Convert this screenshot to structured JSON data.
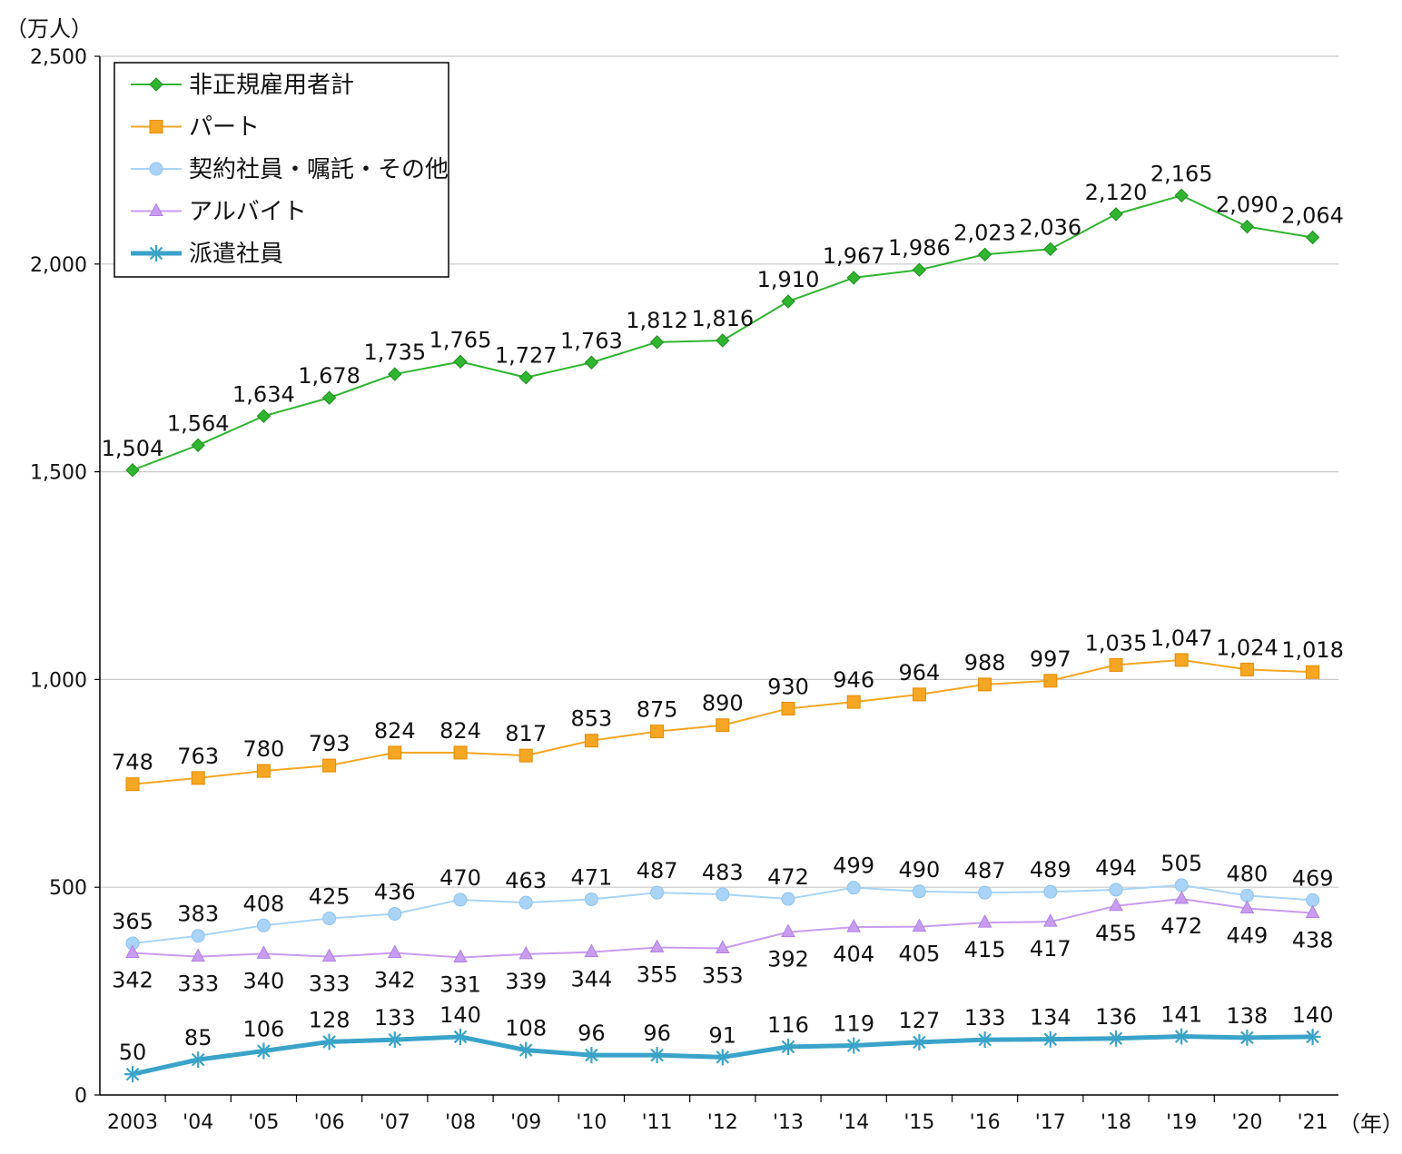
{
  "chart_data": {
    "type": "line",
    "title": "",
    "y_unit_label": "（万人）",
    "x_unit_label": "（年）",
    "xlabel": "",
    "ylabel": "",
    "ylim": [
      0,
      2500
    ],
    "yticks": [
      0,
      500,
      1000,
      1500,
      2000,
      2500
    ],
    "ytick_labels": [
      "0",
      "500",
      "1,000",
      "1,500",
      "2,000",
      "2,500"
    ],
    "grid": true,
    "legend_position": "top-left",
    "categories": [
      "2003",
      "'04",
      "'05",
      "'06",
      "'07",
      "'08",
      "'09",
      "'10",
      "'11",
      "'12",
      "'13",
      "'14",
      "'15",
      "'16",
      "'17",
      "'18",
      "'19",
      "'20",
      "'21"
    ],
    "series": [
      {
        "name": "非正規雇用者計",
        "marker": "diamond",
        "color": "#2fb52f",
        "label_position": "above",
        "values": [
          1504,
          1564,
          1634,
          1678,
          1735,
          1765,
          1727,
          1763,
          1812,
          1816,
          1910,
          1967,
          1986,
          2023,
          2036,
          2120,
          2165,
          2090,
          2064
        ],
        "labels": [
          "1,504",
          "1,564",
          "1,634",
          "1,678",
          "1,735",
          "1,765",
          "1,727",
          "1,763",
          "1,812",
          "1,816",
          "1,910",
          "1,967",
          "1,986",
          "2,023",
          "2,036",
          "2,120",
          "2,165",
          "2,090",
          "2,064"
        ]
      },
      {
        "name": "パート",
        "marker": "square",
        "color": "#f5a623",
        "label_position": "above",
        "values": [
          748,
          763,
          780,
          793,
          824,
          824,
          817,
          853,
          875,
          890,
          930,
          946,
          964,
          988,
          997,
          1035,
          1047,
          1024,
          1018
        ],
        "labels": [
          "748",
          "763",
          "780",
          "793",
          "824",
          "824",
          "817",
          "853",
          "875",
          "890",
          "930",
          "946",
          "964",
          "988",
          "997",
          "1,035",
          "1,047",
          "1,024",
          "1,018"
        ]
      },
      {
        "name": "契約社員・嘱託・その他",
        "marker": "circle",
        "color": "#a9d4f7",
        "label_position": "above",
        "values": [
          365,
          383,
          408,
          425,
          436,
          470,
          463,
          471,
          487,
          483,
          472,
          499,
          490,
          487,
          489,
          494,
          505,
          480,
          469
        ],
        "labels": [
          "365",
          "383",
          "408",
          "425",
          "436",
          "470",
          "463",
          "471",
          "487",
          "483",
          "472",
          "499",
          "490",
          "487",
          "489",
          "494",
          "505",
          "480",
          "469"
        ]
      },
      {
        "name": "アルバイト",
        "marker": "triangle",
        "color": "#c89cef",
        "label_position": "below",
        "values": [
          342,
          333,
          340,
          333,
          342,
          331,
          339,
          344,
          355,
          353,
          392,
          404,
          405,
          415,
          417,
          455,
          472,
          449,
          438
        ],
        "labels": [
          "342",
          "333",
          "340",
          "333",
          "342",
          "331",
          "339",
          "344",
          "355",
          "353",
          "392",
          "404",
          "405",
          "415",
          "417",
          "455",
          "472",
          "449",
          "438"
        ]
      },
      {
        "name": "派遣社員",
        "marker": "asterisk",
        "color": "#3aa3c9",
        "label_position": "above",
        "values": [
          50,
          85,
          106,
          128,
          133,
          140,
          108,
          96,
          96,
          91,
          116,
          119,
          127,
          133,
          134,
          136,
          141,
          138,
          140
        ],
        "labels": [
          "50",
          "85",
          "106",
          "128",
          "133",
          "140",
          "108",
          "96",
          "96",
          "91",
          "116",
          "119",
          "127",
          "133",
          "134",
          "136",
          "141",
          "138",
          "140"
        ]
      }
    ]
  }
}
